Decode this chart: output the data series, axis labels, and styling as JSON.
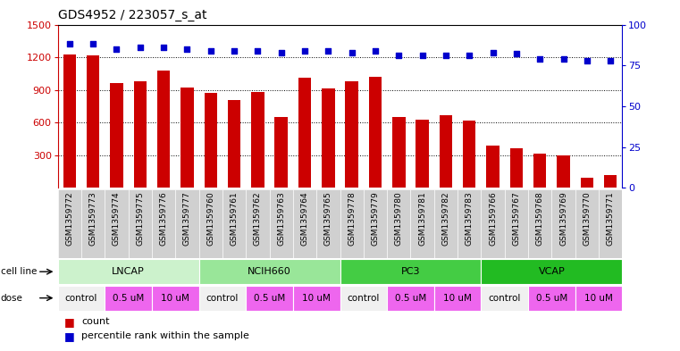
{
  "title": "GDS4952 / 223057_s_at",
  "samples": [
    "GSM1359772",
    "GSM1359773",
    "GSM1359774",
    "GSM1359775",
    "GSM1359776",
    "GSM1359777",
    "GSM1359760",
    "GSM1359761",
    "GSM1359762",
    "GSM1359763",
    "GSM1359764",
    "GSM1359765",
    "GSM1359778",
    "GSM1359779",
    "GSM1359780",
    "GSM1359781",
    "GSM1359782",
    "GSM1359783",
    "GSM1359766",
    "GSM1359767",
    "GSM1359768",
    "GSM1359769",
    "GSM1359770",
    "GSM1359771"
  ],
  "counts": [
    1225,
    1220,
    960,
    980,
    1080,
    920,
    870,
    810,
    880,
    650,
    1010,
    915,
    980,
    1020,
    650,
    630,
    670,
    615,
    390,
    360,
    310,
    295,
    95,
    120
  ],
  "percentile_ranks": [
    88,
    88,
    85,
    86,
    86,
    85,
    84,
    84,
    84,
    83,
    84,
    84,
    83,
    84,
    81,
    81,
    81,
    81,
    83,
    82,
    79,
    79,
    78,
    78
  ],
  "cell_lines": [
    {
      "name": "LNCAP",
      "start": 0,
      "end": 6,
      "color": "#ccf2cc"
    },
    {
      "name": "NCIH660",
      "start": 6,
      "end": 12,
      "color": "#99e699"
    },
    {
      "name": "PC3",
      "start": 12,
      "end": 18,
      "color": "#44cc44"
    },
    {
      "name": "VCAP",
      "start": 18,
      "end": 24,
      "color": "#22bb22"
    }
  ],
  "dose_groups": [
    {
      "label": "control",
      "start": 0,
      "end": 2,
      "color": "#f0f0f0"
    },
    {
      "label": "0.5 uM",
      "start": 2,
      "end": 4,
      "color": "#ee66ee"
    },
    {
      "label": "10 uM",
      "start": 4,
      "end": 6,
      "color": "#ee66ee"
    },
    {
      "label": "control",
      "start": 6,
      "end": 8,
      "color": "#f0f0f0"
    },
    {
      "label": "0.5 uM",
      "start": 8,
      "end": 10,
      "color": "#ee66ee"
    },
    {
      "label": "10 uM",
      "start": 10,
      "end": 12,
      "color": "#ee66ee"
    },
    {
      "label": "control",
      "start": 12,
      "end": 14,
      "color": "#f0f0f0"
    },
    {
      "label": "0.5 uM",
      "start": 14,
      "end": 16,
      "color": "#ee66ee"
    },
    {
      "label": "10 uM",
      "start": 16,
      "end": 18,
      "color": "#ee66ee"
    },
    {
      "label": "control",
      "start": 18,
      "end": 20,
      "color": "#f0f0f0"
    },
    {
      "label": "0.5 uM",
      "start": 20,
      "end": 22,
      "color": "#ee66ee"
    },
    {
      "label": "10 uM",
      "start": 22,
      "end": 24,
      "color": "#ee66ee"
    }
  ],
  "bar_color": "#cc0000",
  "dot_color": "#0000cc",
  "ylim_left": [
    0,
    1500
  ],
  "ylim_right": [
    0,
    100
  ],
  "yticks_left": [
    300,
    600,
    900,
    1200,
    1500
  ],
  "yticks_right": [
    0,
    25,
    50,
    75,
    100
  ],
  "grid_values": [
    300,
    600,
    900,
    1200
  ],
  "tick_box_color": "#d0d0d0",
  "bar_color_legend": "#cc0000",
  "dot_color_legend": "#0000cc"
}
